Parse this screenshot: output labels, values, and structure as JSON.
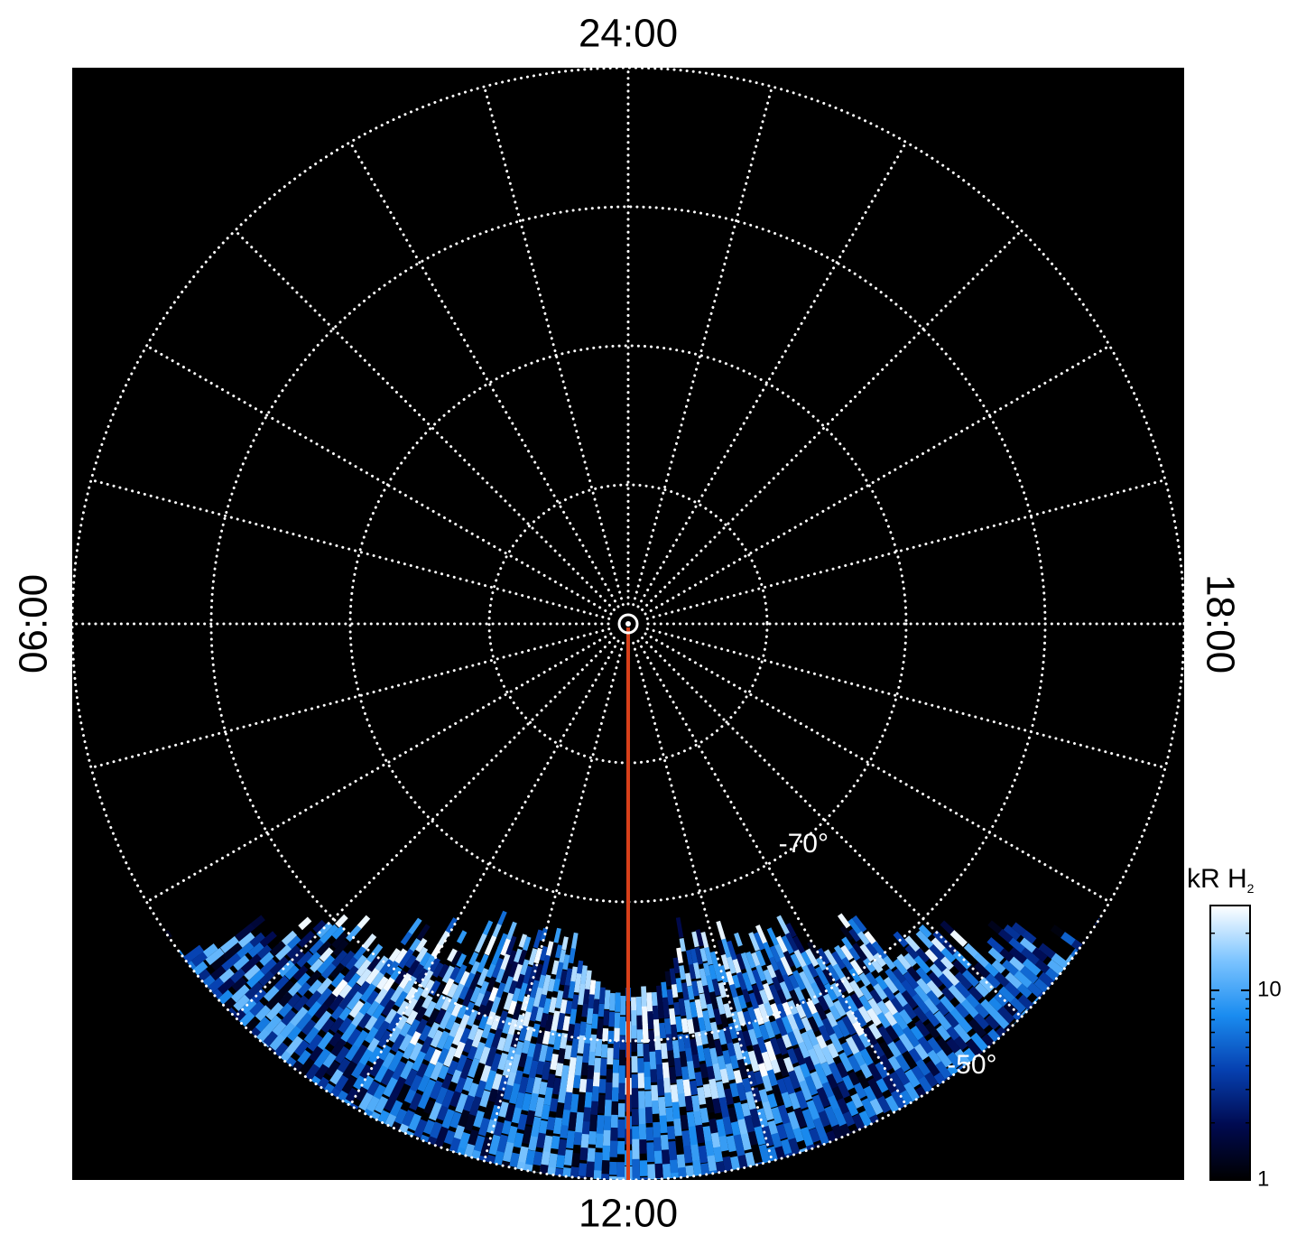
{
  "chart_data": {
    "type": "polar-image",
    "local_time_labels": {
      "top": "24:00",
      "bottom": "12:00",
      "left": "06:00",
      "right": "18:00"
    },
    "lat_lim": [
      -90,
      -50
    ],
    "lat_ticks": [
      -80,
      -70,
      -60,
      -50
    ],
    "lat_labels": [
      {
        "value": -70,
        "label": "-70°"
      },
      {
        "value": -50,
        "label": "-50°"
      }
    ],
    "lon_grid_hours": 1,
    "grid": true,
    "highlight_color": "#d8401a",
    "colorbar": {
      "label": "kR H",
      "label_sub": "2",
      "scale": "log",
      "lim": [
        1,
        28
      ],
      "ticks": [
        1,
        10
      ],
      "colors": [
        "#000000",
        "#000a50",
        "#0640b0",
        "#1a8cf0",
        "#7cc4ff",
        "#ffffff"
      ]
    }
  }
}
